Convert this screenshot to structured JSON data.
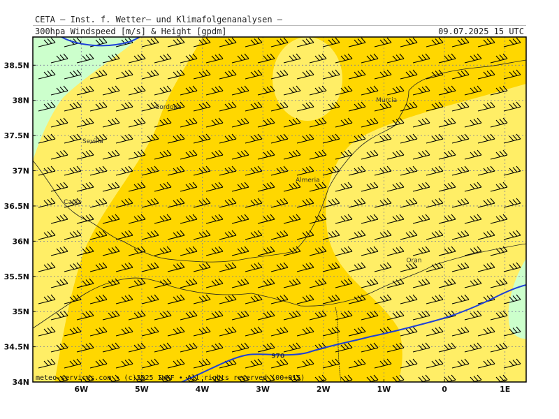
{
  "header": {
    "title": "CETA — Inst. f. Wetter— und Klimafolgenanalysen —",
    "subtitle": "300hpa Windspeed [m/s] & Height [gpdm]",
    "datetime": "09.07.2025 15 UTC"
  },
  "footer": {
    "credit": "meteo-services.com • (c)2025 IWKF • All rights reserved (00+015)"
  },
  "axes": {
    "lat_labels": [
      "38.5N",
      "38N",
      "37.5N",
      "37N",
      "36.5N",
      "36N",
      "35.5N",
      "35N",
      "34.5N",
      "34N"
    ],
    "lat_values": [
      38.5,
      38,
      37.5,
      37,
      36.5,
      36,
      35.5,
      35,
      34.5,
      34
    ],
    "lon_labels": [
      "6W",
      "5W",
      "4W",
      "3W",
      "2W",
      "1W",
      "0",
      "1E"
    ],
    "lon_values": [
      -6,
      -5,
      -4,
      -3,
      -2,
      -1,
      0,
      1
    ],
    "lon_range": [
      -6.8,
      1.35
    ],
    "lat_range": [
      34.0,
      38.9
    ]
  },
  "cities": [
    {
      "name": "Cordoba",
      "lon": -4.78,
      "lat": 37.88
    },
    {
      "name": "Sevilla",
      "lon": -5.98,
      "lat": 37.39
    },
    {
      "name": "Murcia",
      "lon": -1.13,
      "lat": 37.98
    },
    {
      "name": "Almeria",
      "lon": -2.46,
      "lat": 36.84
    },
    {
      "name": "Cadiz",
      "lon": -6.29,
      "lat": 36.53
    },
    {
      "name": "Oran",
      "lon": -0.63,
      "lat": 35.7
    }
  ],
  "contours": [
    {
      "label": "970",
      "lon": -2.75,
      "lat": 34.34
    }
  ],
  "colors": {
    "light_green": "#ccffcc",
    "light_yellow": "#ffee66",
    "gold": "#ffd700",
    "contour": "#1e40d8",
    "grid": "#7a7a9a"
  }
}
